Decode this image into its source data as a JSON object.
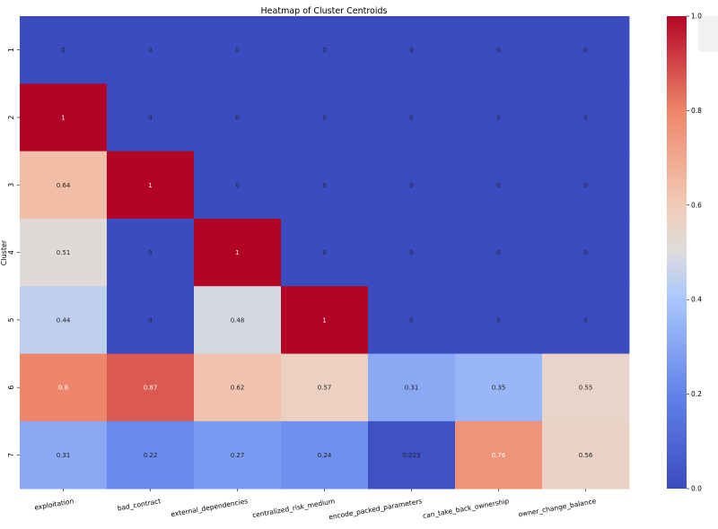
{
  "chart_data": {
    "type": "heatmap",
    "title": "Heatmap of Cluster Centroids",
    "ylabel": "Cluster",
    "xlabel": "",
    "columns": [
      "exploitation",
      "bad_contract",
      "external_dependencies",
      "centralized_risk_medium",
      "encode_packed_parameters",
      "can_take_back_ownership",
      "owner_change_balance"
    ],
    "rows": [
      "1",
      "2",
      "3",
      "4",
      "5",
      "6",
      "7"
    ],
    "values": [
      [
        0,
        0,
        0,
        0,
        0,
        0,
        0
      ],
      [
        1,
        0,
        0,
        0,
        0,
        0,
        0
      ],
      [
        0.64,
        1,
        0,
        0,
        0,
        0,
        0
      ],
      [
        0.51,
        0,
        1,
        0,
        0,
        0,
        0
      ],
      [
        0.44,
        0,
        0.48,
        1,
        0,
        0,
        0
      ],
      [
        0.8,
        0.87,
        0.62,
        0.57,
        0.31,
        0.35,
        0.55
      ],
      [
        0.31,
        0.22,
        0.27,
        0.24,
        0.023,
        0.76,
        0.56
      ]
    ],
    "colormap": "coolwarm",
    "vmin": 0,
    "vmax": 1,
    "colorbar_ticks": [
      "0.0",
      "0.2",
      "0.4",
      "0.6",
      "0.8",
      "1.0"
    ],
    "colorbar_position": "right"
  }
}
